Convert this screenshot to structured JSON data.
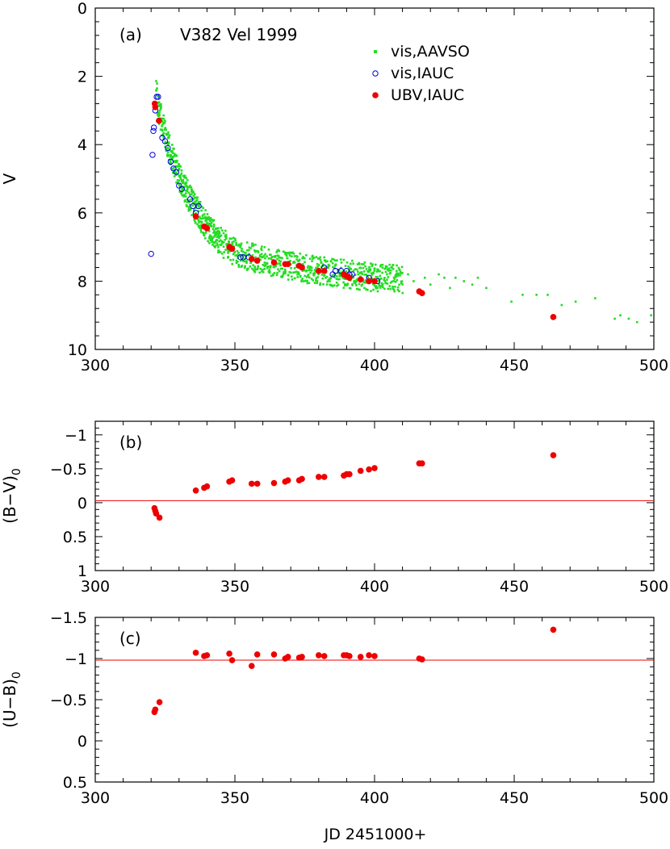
{
  "figure": {
    "xlabel": "JD 2451000+"
  },
  "chart_data": [
    {
      "type": "scatter",
      "panel_label": "(a)",
      "title": "V382 Vel 1999",
      "xlabel": "JD 2451000+",
      "ylabel": "V",
      "xlim": [
        300,
        500
      ],
      "ylim": [
        10,
        0
      ],
      "y_inverted": true,
      "xticks": [
        "300",
        "350",
        "400",
        "450",
        "500"
      ],
      "yticks": [
        "0",
        "2",
        "4",
        "6",
        "8",
        "10"
      ],
      "legend_position": "top-right",
      "series": [
        {
          "name": "vis,AAVSO",
          "color": "#22dd22",
          "marker": "small-dot",
          "trend": [
            [
              322,
              2.55
            ],
            [
              324,
              3.4
            ],
            [
              326,
              4.0
            ],
            [
              328,
              4.5
            ],
            [
              330,
              4.95
            ],
            [
              333,
              5.45
            ],
            [
              336,
              5.9
            ],
            [
              340,
              6.4
            ],
            [
              345,
              6.85
            ],
            [
              350,
              7.15
            ],
            [
              360,
              7.4
            ],
            [
              370,
              7.55
            ],
            [
              380,
              7.7
            ],
            [
              390,
              7.8
            ],
            [
              400,
              7.9
            ],
            [
              410,
              7.95
            ]
          ],
          "scatter_band": 0.6,
          "values": [
            [
              412,
              7.8
            ],
            [
              414,
              8.0
            ],
            [
              418,
              7.9
            ],
            [
              420,
              8.1
            ],
            [
              423,
              7.8
            ],
            [
              425,
              7.9
            ],
            [
              427,
              8.2
            ],
            [
              429,
              7.9
            ],
            [
              432,
              8.0
            ],
            [
              435,
              8.1
            ],
            [
              437,
              7.9
            ],
            [
              440,
              8.2
            ],
            [
              449,
              8.6
            ],
            [
              453,
              8.4
            ],
            [
              458,
              8.4
            ],
            [
              462,
              8.4
            ],
            [
              467,
              8.7
            ],
            [
              472,
              8.6
            ],
            [
              479,
              8.5
            ],
            [
              486,
              9.1
            ],
            [
              488,
              9.0
            ],
            [
              491,
              9.1
            ],
            [
              494,
              9.2
            ],
            [
              499,
              9.0
            ]
          ]
        },
        {
          "name": "vis,IAUC",
          "color": "#0000dd",
          "marker": "open-circle",
          "values": [
            [
              320,
              7.2
            ],
            [
              320.5,
              4.3
            ],
            [
              320.8,
              3.6
            ],
            [
              321,
              3.5
            ],
            [
              321.5,
              3.0
            ],
            [
              322,
              2.6
            ],
            [
              322.5,
              2.6
            ],
            [
              324,
              3.8
            ],
            [
              325,
              3.9
            ],
            [
              326,
              4.1
            ],
            [
              327,
              4.5
            ],
            [
              328,
              4.7
            ],
            [
              329,
              4.8
            ],
            [
              330,
              5.2
            ],
            [
              331,
              5.3
            ],
            [
              334,
              5.6
            ],
            [
              335,
              5.8
            ],
            [
              336,
              6.0
            ],
            [
              337,
              5.8
            ],
            [
              352,
              7.3
            ],
            [
              353,
              7.3
            ],
            [
              355,
              7.3
            ],
            [
              382,
              7.6
            ],
            [
              385,
              7.8
            ],
            [
              386,
              7.7
            ],
            [
              388,
              7.7
            ],
            [
              390,
              7.7
            ],
            [
              391,
              7.8
            ],
            [
              392,
              7.8
            ],
            [
              398,
              7.9
            ],
            [
              401,
              8.0
            ]
          ]
        },
        {
          "name": "UBV,IAUC",
          "color": "#ee0000",
          "marker": "filled-circle",
          "values": [
            [
              321.3,
              2.8
            ],
            [
              321.5,
              2.9
            ],
            [
              322.8,
              3.3
            ],
            [
              336,
              6.1
            ],
            [
              339,
              6.4
            ],
            [
              340,
              6.45
            ],
            [
              348,
              7.0
            ],
            [
              349,
              7.05
            ],
            [
              356,
              7.35
            ],
            [
              358,
              7.4
            ],
            [
              364,
              7.45
            ],
            [
              368,
              7.5
            ],
            [
              369,
              7.5
            ],
            [
              373,
              7.55
            ],
            [
              374,
              7.6
            ],
            [
              380,
              7.7
            ],
            [
              382,
              7.7
            ],
            [
              389,
              7.8
            ],
            [
              390,
              7.85
            ],
            [
              391,
              7.9
            ],
            [
              395,
              7.95
            ],
            [
              398,
              8.0
            ],
            [
              400,
              8.0
            ],
            [
              416,
              8.3
            ],
            [
              417,
              8.35
            ],
            [
              464,
              9.05
            ]
          ]
        }
      ]
    },
    {
      "type": "scatter",
      "panel_label": "(b)",
      "ylabel": "(B−V)",
      "ylabel_subscript": "0",
      "xlim": [
        300,
        500
      ],
      "ylim": [
        1,
        -1.2
      ],
      "y_inverted": true,
      "xticks": [
        "300",
        "350",
        "400",
        "450",
        "500"
      ],
      "yticks": [
        "−1",
        "−0.5",
        "0",
        "0.5",
        "1"
      ],
      "reference_line_y": -0.03,
      "series": [
        {
          "color": "#ee0000",
          "marker": "filled-circle",
          "values": [
            [
              321.2,
              0.08
            ],
            [
              321.5,
              0.12
            ],
            [
              321.8,
              0.16
            ],
            [
              323,
              0.22
            ],
            [
              336,
              -0.18
            ],
            [
              339,
              -0.22
            ],
            [
              340,
              -0.24
            ],
            [
              348,
              -0.31
            ],
            [
              349,
              -0.33
            ],
            [
              356,
              -0.28
            ],
            [
              358,
              -0.28
            ],
            [
              364,
              -0.29
            ],
            [
              368,
              -0.31
            ],
            [
              369,
              -0.33
            ],
            [
              373,
              -0.33
            ],
            [
              374,
              -0.35
            ],
            [
              380,
              -0.38
            ],
            [
              382,
              -0.38
            ],
            [
              389,
              -0.4
            ],
            [
              390,
              -0.42
            ],
            [
              391,
              -0.42
            ],
            [
              395,
              -0.47
            ],
            [
              398,
              -0.49
            ],
            [
              400,
              -0.51
            ],
            [
              416,
              -0.58
            ],
            [
              417,
              -0.58
            ],
            [
              464,
              -0.7
            ]
          ]
        }
      ]
    },
    {
      "type": "scatter",
      "panel_label": "(c)",
      "xlabel": "JD 2451000+",
      "ylabel": "(U−B)",
      "ylabel_subscript": "0",
      "xlim": [
        300,
        500
      ],
      "ylim": [
        0.5,
        -1.5
      ],
      "y_inverted": true,
      "xticks": [
        "300",
        "350",
        "400",
        "450",
        "500"
      ],
      "yticks": [
        "−1.5",
        "−1",
        "−0.5",
        "0",
        "0.5"
      ],
      "reference_line_y": -0.98,
      "series": [
        {
          "color": "#ee0000",
          "marker": "filled-circle",
          "values": [
            [
              321.2,
              -0.35
            ],
            [
              321.5,
              -0.38
            ],
            [
              323,
              -0.47
            ],
            [
              336,
              -1.07
            ],
            [
              339,
              -1.03
            ],
            [
              340,
              -1.04
            ],
            [
              348,
              -1.06
            ],
            [
              349,
              -0.98
            ],
            [
              356,
              -0.91
            ],
            [
              358,
              -1.05
            ],
            [
              364,
              -1.05
            ],
            [
              368,
              -1.0
            ],
            [
              369,
              -1.02
            ],
            [
              373,
              -1.01
            ],
            [
              374,
              -1.02
            ],
            [
              380,
              -1.04
            ],
            [
              382,
              -1.03
            ],
            [
              389,
              -1.04
            ],
            [
              390,
              -1.04
            ],
            [
              391,
              -1.03
            ],
            [
              395,
              -1.02
            ],
            [
              398,
              -1.04
            ],
            [
              400,
              -1.03
            ],
            [
              416,
              -1.0
            ],
            [
              417,
              -0.99
            ],
            [
              464,
              -1.35
            ]
          ]
        }
      ]
    }
  ]
}
